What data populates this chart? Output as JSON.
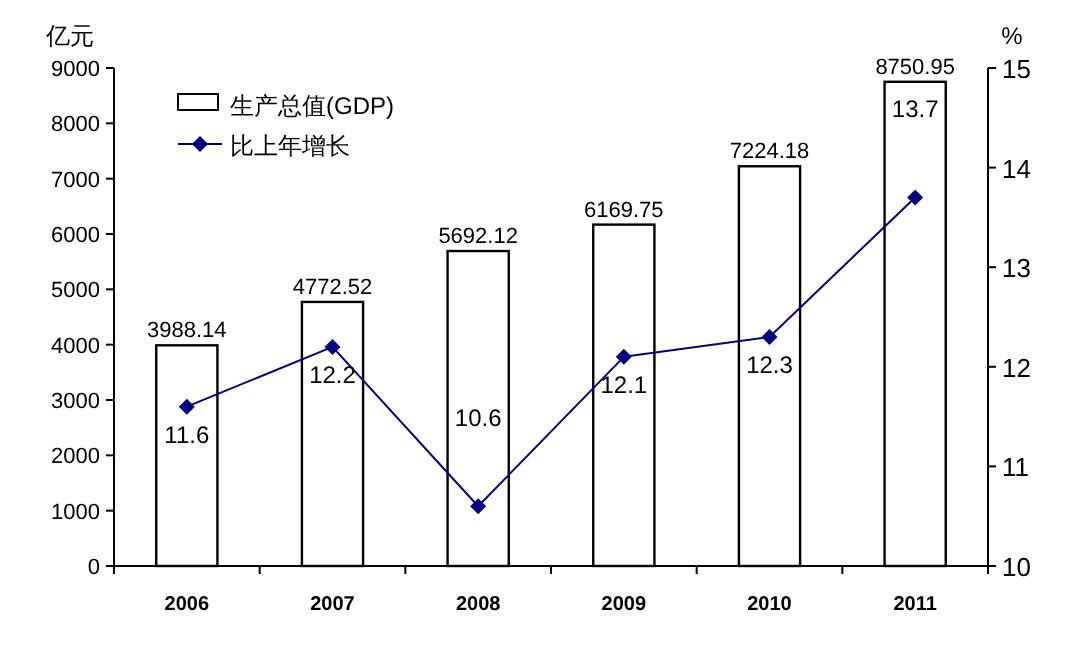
{
  "chart_data": {
    "type": "bar",
    "categories": [
      "2006",
      "2007",
      "2008",
      "2009",
      "2010",
      "2011"
    ],
    "ylabel": "亿元",
    "y2label": "%",
    "ylim": [
      0,
      9000
    ],
    "yticks": [
      0,
      1000,
      2000,
      3000,
      4000,
      5000,
      6000,
      7000,
      8000,
      9000
    ],
    "y2lim": [
      10,
      15
    ],
    "y2ticks": [
      10,
      11,
      12,
      13,
      14,
      15
    ],
    "series": [
      {
        "name": "生产总值(GDP)",
        "color": "#ffffff",
        "values": [
          3988.14,
          4772.52,
          5692.12,
          6169.75,
          7224.18,
          8750.95
        ]
      },
      {
        "name": "比上年增长",
        "type": "line",
        "axis": "y2",
        "color": "#000080",
        "marker": "diamond",
        "values": [
          11.6,
          12.2,
          10.6,
          12.1,
          12.3,
          13.7
        ]
      }
    ],
    "data_labels": true,
    "legend": "top left",
    "grid": false
  }
}
